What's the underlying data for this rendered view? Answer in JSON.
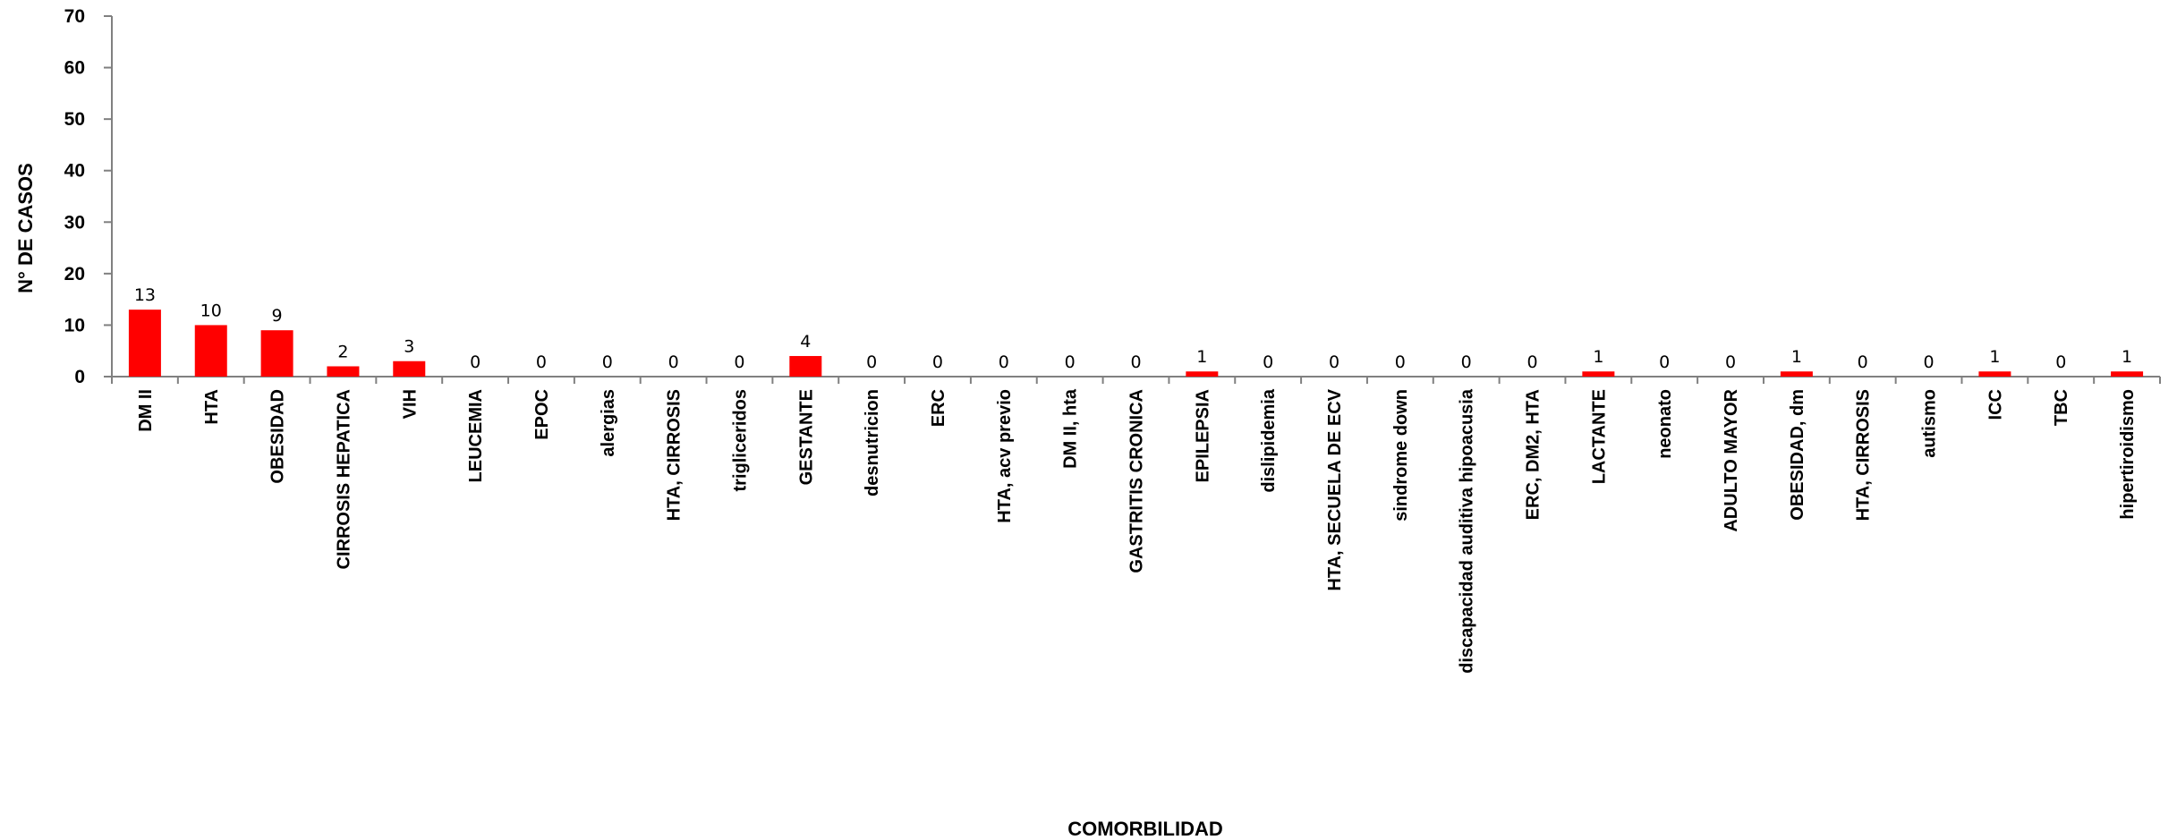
{
  "chart_data": {
    "type": "bar",
    "title": "",
    "xlabel": "COMORBILIDAD",
    "ylabel": "N° DE CASOS",
    "ylim": [
      0,
      70
    ],
    "yticks": [
      "0",
      "10",
      "20",
      "30",
      "40",
      "50",
      "60",
      "70"
    ],
    "grid": false,
    "legend": "none",
    "bar_color": "#ff0000",
    "categories": [
      "DM II",
      "HTA",
      "OBESIDAD",
      "CIRROSIS HEPATICA",
      "VIH",
      "LEUCEMIA",
      "EPOC",
      "alergias",
      "HTA, CIRROSIS",
      "trigliceridos",
      "GESTANTE",
      "desnutricion",
      "ERC",
      "HTA, acv previo",
      "DM II, hta",
      "GASTRITIS CRONICA",
      "EPILEPSIA",
      "dislipidemia",
      "HTA, SECUELA DE ECV",
      "sindrome down",
      "discapacidad auditiva  hipoacusia",
      "ERC, DM2, HTA",
      "LACTANTE",
      "neonato",
      "ADULTO MAYOR",
      "OBESIDAD, dm",
      "HTA, CIRROSIS",
      "autismo",
      "ICC",
      "TBC",
      "hipertiroidismo"
    ],
    "values": [
      13,
      10,
      9,
      2,
      3,
      0,
      0,
      0,
      0,
      0,
      4,
      0,
      0,
      0,
      0,
      0,
      1,
      0,
      0,
      0,
      0,
      0,
      1,
      0,
      0,
      1,
      0,
      0,
      1,
      0,
      1
    ],
    "data_labels": [
      "13",
      "10",
      "9",
      "2",
      "3",
      "0",
      "0",
      "0",
      "0",
      "0",
      "4",
      "0",
      "0",
      "0",
      "0",
      "0",
      "1",
      "0",
      "0",
      "0",
      "0",
      "0",
      "1",
      "0",
      "0",
      "1",
      "0",
      "0",
      "1",
      "0",
      "1"
    ]
  }
}
